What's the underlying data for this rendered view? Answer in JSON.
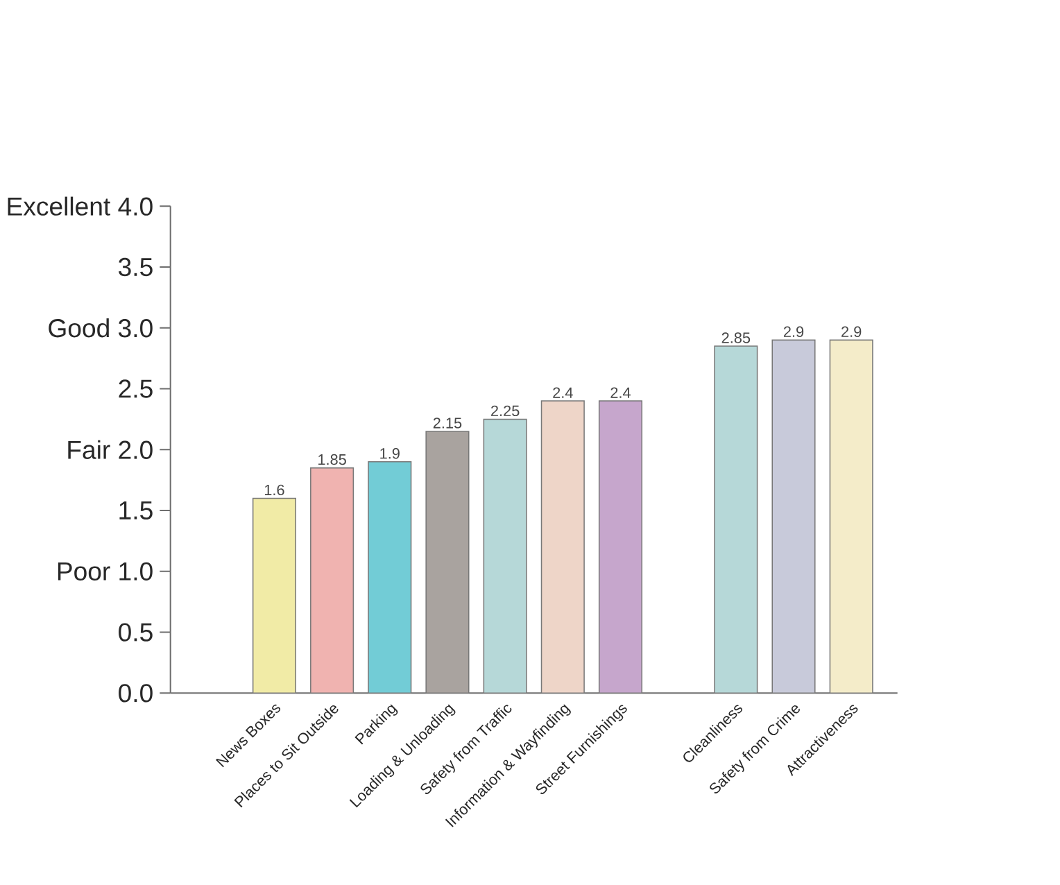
{
  "chart_data": {
    "type": "bar",
    "categories": [
      "News Boxes",
      "Places to Sit Outside",
      "Parking",
      "Loading & Unloading",
      "Safety from Traffic",
      "Information & Wayfinding",
      "Street Furnishings",
      null,
      "Cleanliness",
      "Safety from Crime",
      "Attractiveness"
    ],
    "values": [
      1.6,
      1.85,
      1.9,
      2.15,
      2.25,
      2.4,
      2.4,
      null,
      2.85,
      2.9,
      2.9
    ],
    "colors": [
      "#f1eba6",
      "#f0b3b0",
      "#72ccd6",
      "#a9a39f",
      "#b6d8d8",
      "#eed5c8",
      "#c6a6cc",
      null,
      "#b6d8d8",
      "#c8cada",
      "#f4ecc9"
    ],
    "ylim": [
      0,
      4
    ],
    "yticks": [
      {
        "value": 0,
        "label": "0.0"
      },
      {
        "value": 0.5,
        "label": "0.5"
      },
      {
        "value": 1,
        "label": "Poor 1.0"
      },
      {
        "value": 1.5,
        "label": "1.5"
      },
      {
        "value": 2,
        "label": "Fair 2.0"
      },
      {
        "value": 2.5,
        "label": "2.5"
      },
      {
        "value": 3,
        "label": "Good 3.0"
      },
      {
        "value": 3.5,
        "label": "3.5"
      },
      {
        "value": 4,
        "label": "Excellent 4.0"
      }
    ],
    "data_labels": true
  }
}
